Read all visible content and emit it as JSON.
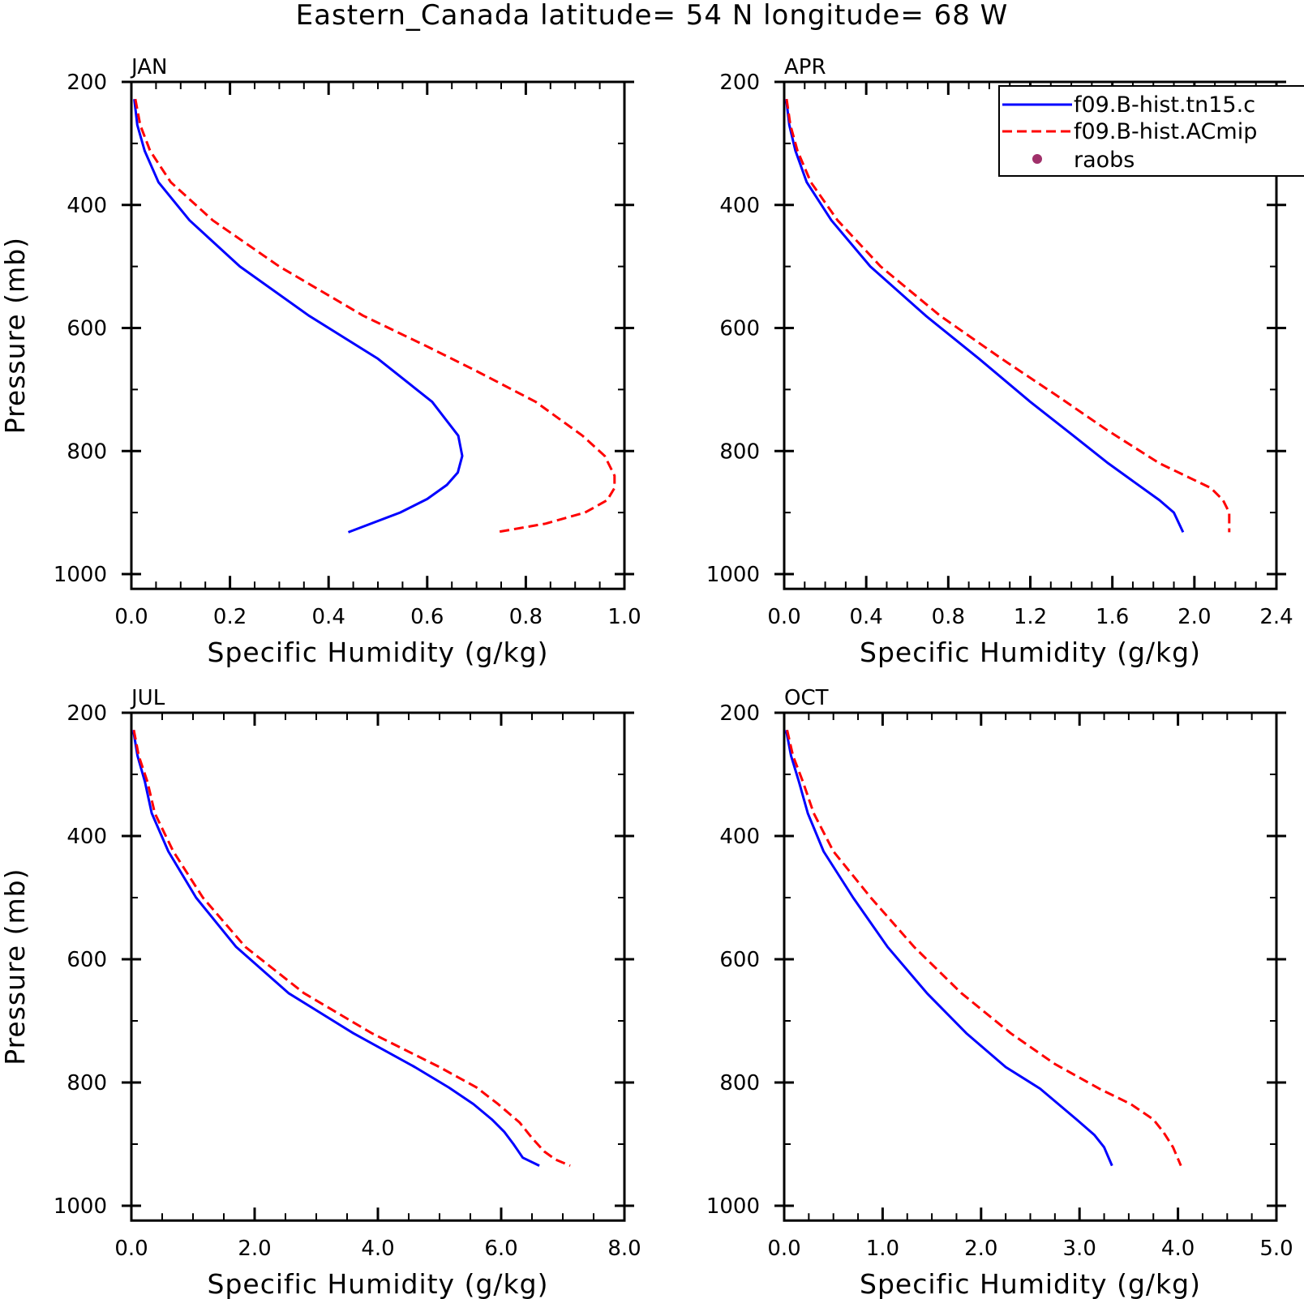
{
  "title": "Eastern_Canada  latitude= 54 N longitude= 68 W",
  "legend": {
    "entries": [
      {
        "label": "f09.B-hist.tn15.c",
        "color": "#0000ff",
        "style": "solid"
      },
      {
        "label": "f09.B-hist.ACmip",
        "color": "#ff0000",
        "style": "dashed"
      },
      {
        "label": "raobs",
        "color": "#a0306a",
        "style": "dot"
      }
    ]
  },
  "chart_data": [
    {
      "type": "line",
      "panel_label": "JAN",
      "xlabel": "Specific Humidity (g/kg)",
      "ylabel": "Pressure (mb)",
      "xlim": [
        0,
        1.0
      ],
      "ylim": [
        200,
        1000
      ],
      "y_inverted": true,
      "xticks": [
        "0.0",
        "0.2",
        "0.4",
        "0.6",
        "0.8",
        "1.0"
      ],
      "xtick_values": [
        0,
        0.2,
        0.4,
        0.6,
        0.8,
        1.0
      ],
      "yticks": [
        "200",
        "400",
        "600",
        "800",
        "1000"
      ],
      "ytick_values": [
        200,
        400,
        600,
        800,
        1000
      ],
      "series": [
        {
          "name": "f09.B-hist.tn15.c",
          "color": "#0000ff",
          "style": "solid",
          "points": [
            [
              0.006,
              228
            ],
            [
              0.012,
              270
            ],
            [
              0.027,
              312
            ],
            [
              0.055,
              363
            ],
            [
              0.118,
              425
            ],
            [
              0.22,
              500
            ],
            [
              0.36,
              580
            ],
            [
              0.5,
              650
            ],
            [
              0.61,
              720
            ],
            [
              0.663,
              775
            ],
            [
              0.671,
              808
            ],
            [
              0.662,
              835
            ],
            [
              0.64,
              855
            ],
            [
              0.6,
              878
            ],
            [
              0.545,
              900
            ],
            [
              0.44,
              932
            ]
          ]
        },
        {
          "name": "f09.B-hist.ACmip",
          "color": "#ff0000",
          "style": "dashed",
          "points": [
            [
              0.008,
              228
            ],
            [
              0.018,
              270
            ],
            [
              0.038,
              312
            ],
            [
              0.08,
              363
            ],
            [
              0.165,
              425
            ],
            [
              0.3,
              500
            ],
            [
              0.47,
              580
            ],
            [
              0.6,
              630
            ],
            [
              0.7,
              670
            ],
            [
              0.82,
              720
            ],
            [
              0.915,
              775
            ],
            [
              0.96,
              808
            ],
            [
              0.98,
              840
            ],
            [
              0.98,
              860
            ],
            [
              0.965,
              880
            ],
            [
              0.92,
              900
            ],
            [
              0.84,
              918
            ],
            [
              0.74,
              932
            ]
          ]
        }
      ]
    },
    {
      "type": "line",
      "panel_label": "APR",
      "xlabel": "Specific Humidity (g/kg)",
      "ylabel": "",
      "xlim": [
        0,
        2.4
      ],
      "ylim": [
        200,
        1000
      ],
      "y_inverted": true,
      "xticks": [
        "0.0",
        "0.4",
        "0.8",
        "1.2",
        "1.6",
        "2.0",
        "2.4"
      ],
      "xtick_values": [
        0,
        0.4,
        0.8,
        1.2,
        1.6,
        2.0,
        2.4
      ],
      "yticks": [
        "200",
        "400",
        "600",
        "800",
        "1000"
      ],
      "ytick_values": [
        200,
        400,
        600,
        800,
        1000
      ],
      "series": [
        {
          "name": "f09.B-hist.tn15.c",
          "color": "#0000ff",
          "style": "solid",
          "points": [
            [
              0.01,
              228
            ],
            [
              0.025,
              270
            ],
            [
              0.055,
              312
            ],
            [
              0.11,
              363
            ],
            [
              0.23,
              425
            ],
            [
              0.42,
              500
            ],
            [
              0.69,
              580
            ],
            [
              0.95,
              650
            ],
            [
              1.2,
              720
            ],
            [
              1.41,
              775
            ],
            [
              1.58,
              820
            ],
            [
              1.83,
              880
            ],
            [
              1.9,
              900
            ],
            [
              1.945,
              932
            ]
          ]
        },
        {
          "name": "f09.B-hist.ACmip",
          "color": "#ff0000",
          "style": "dashed",
          "points": [
            [
              0.012,
              228
            ],
            [
              0.03,
              270
            ],
            [
              0.065,
              312
            ],
            [
              0.13,
              363
            ],
            [
              0.26,
              425
            ],
            [
              0.47,
              500
            ],
            [
              0.76,
              580
            ],
            [
              1.06,
              650
            ],
            [
              1.33,
              710
            ],
            [
              1.57,
              765
            ],
            [
              1.83,
              820
            ],
            [
              2.08,
              860
            ],
            [
              2.14,
              880
            ],
            [
              2.17,
              900
            ],
            [
              2.17,
              932
            ]
          ]
        }
      ]
    },
    {
      "type": "line",
      "panel_label": "JUL",
      "xlabel": "Specific Humidity (g/kg)",
      "ylabel": "Pressure (mb)",
      "xlim": [
        0,
        8.0
      ],
      "ylim": [
        200,
        1000
      ],
      "y_inverted": true,
      "xticks": [
        "0.0",
        "2.0",
        "4.0",
        "6.0",
        "8.0"
      ],
      "xtick_values": [
        0,
        2.0,
        4.0,
        6.0,
        8.0
      ],
      "yticks": [
        "200",
        "400",
        "600",
        "800",
        "1000"
      ],
      "ytick_values": [
        200,
        400,
        600,
        800,
        1000
      ],
      "series": [
        {
          "name": "f09.B-hist.tn15.c",
          "color": "#0000ff",
          "style": "solid",
          "points": [
            [
              0.03,
              228
            ],
            [
              0.1,
              270
            ],
            [
              0.22,
              312
            ],
            [
              0.33,
              363
            ],
            [
              0.6,
              425
            ],
            [
              1.05,
              500
            ],
            [
              1.7,
              580
            ],
            [
              2.55,
              655
            ],
            [
              3.6,
              720
            ],
            [
              4.6,
              775
            ],
            [
              5.15,
              808
            ],
            [
              5.55,
              835
            ],
            [
              5.85,
              860
            ],
            [
              6.05,
              880
            ],
            [
              6.2,
              900
            ],
            [
              6.35,
              922
            ],
            [
              6.62,
              935
            ]
          ]
        },
        {
          "name": "f09.B-hist.ACmip",
          "color": "#ff0000",
          "style": "dashed",
          "points": [
            [
              0.04,
              228
            ],
            [
              0.12,
              270
            ],
            [
              0.26,
              312
            ],
            [
              0.38,
              363
            ],
            [
              0.68,
              425
            ],
            [
              1.16,
              500
            ],
            [
              1.85,
              580
            ],
            [
              2.8,
              655
            ],
            [
              3.9,
              720
            ],
            [
              5.0,
              775
            ],
            [
              5.6,
              808
            ],
            [
              5.95,
              835
            ],
            [
              6.3,
              865
            ],
            [
              6.5,
              890
            ],
            [
              6.7,
              912
            ],
            [
              6.88,
              925
            ],
            [
              7.12,
              935
            ]
          ]
        }
      ]
    },
    {
      "type": "line",
      "panel_label": "OCT",
      "xlabel": "Specific Humidity (g/kg)",
      "ylabel": "",
      "xlim": [
        0,
        5.0
      ],
      "ylim": [
        200,
        1000
      ],
      "y_inverted": true,
      "xticks": [
        "0.0",
        "1.0",
        "2.0",
        "3.0",
        "4.0",
        "5.0"
      ],
      "xtick_values": [
        0,
        1.0,
        2.0,
        3.0,
        4.0,
        5.0
      ],
      "yticks": [
        "200",
        "400",
        "600",
        "800",
        "1000"
      ],
      "ytick_values": [
        200,
        400,
        600,
        800,
        1000
      ],
      "series": [
        {
          "name": "f09.B-hist.tn15.c",
          "color": "#0000ff",
          "style": "solid",
          "points": [
            [
              0.02,
              228
            ],
            [
              0.07,
              270
            ],
            [
              0.15,
              312
            ],
            [
              0.24,
              363
            ],
            [
              0.4,
              425
            ],
            [
              0.7,
              500
            ],
            [
              1.05,
              580
            ],
            [
              1.45,
              655
            ],
            [
              1.85,
              720
            ],
            [
              2.25,
              775
            ],
            [
              2.6,
              810
            ],
            [
              2.97,
              860
            ],
            [
              3.15,
              885
            ],
            [
              3.25,
              905
            ],
            [
              3.33,
              935
            ]
          ]
        },
        {
          "name": "f09.B-hist.ACmip",
          "color": "#ff0000",
          "style": "dashed",
          "points": [
            [
              0.03,
              228
            ],
            [
              0.09,
              270
            ],
            [
              0.19,
              312
            ],
            [
              0.3,
              363
            ],
            [
              0.5,
              425
            ],
            [
              0.88,
              500
            ],
            [
              1.32,
              580
            ],
            [
              1.8,
              655
            ],
            [
              2.3,
              720
            ],
            [
              2.75,
              770
            ],
            [
              3.2,
              810
            ],
            [
              3.52,
              835
            ],
            [
              3.75,
              860
            ],
            [
              3.85,
              880
            ],
            [
              3.95,
              905
            ],
            [
              4.03,
              935
            ]
          ]
        }
      ]
    }
  ]
}
